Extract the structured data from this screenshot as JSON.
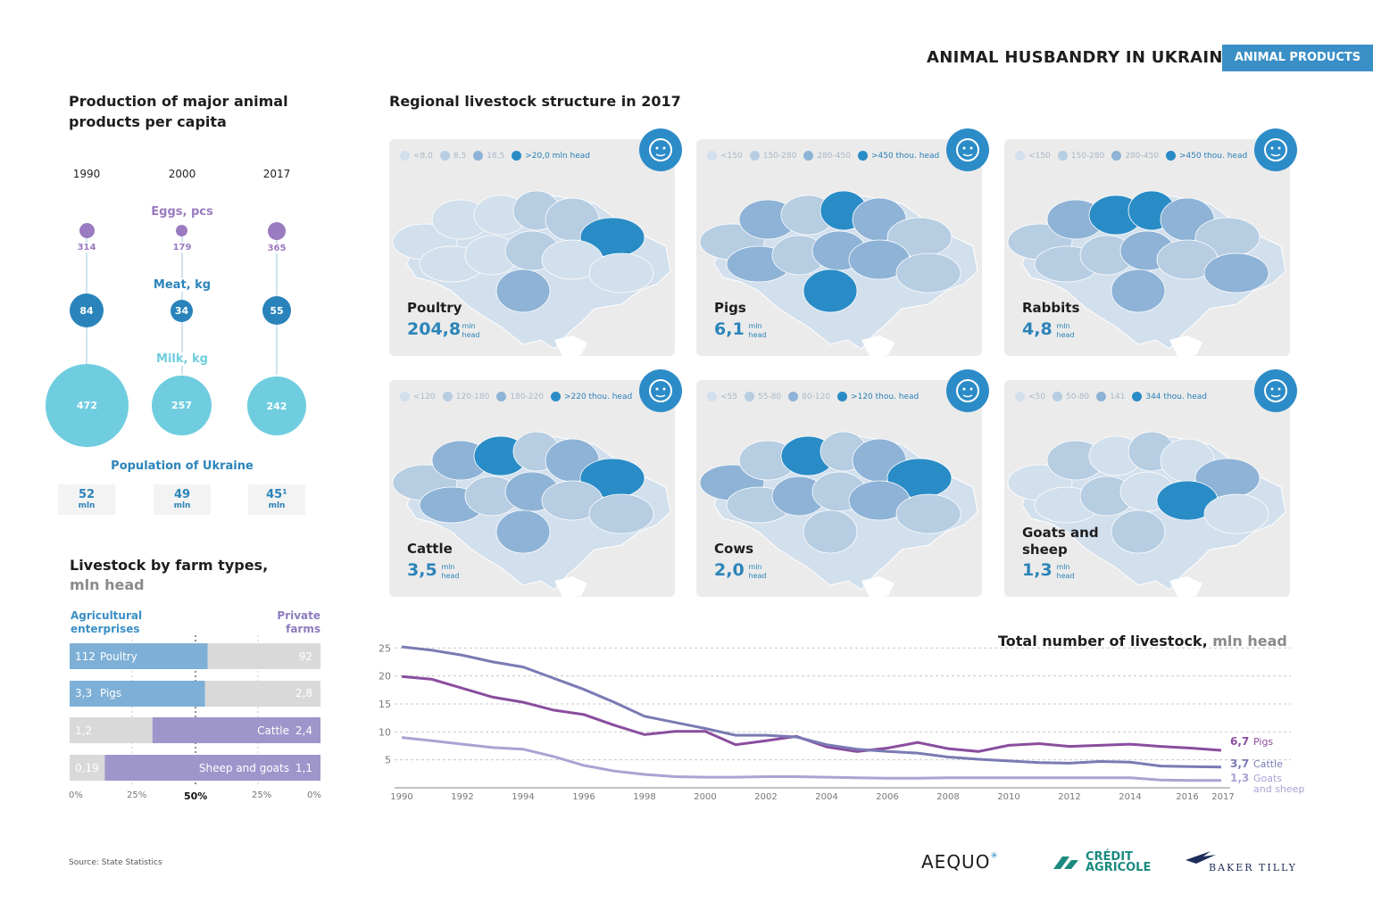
{
  "header": {
    "title": "ANIMAL HUSBANDRY IN UKRAINE",
    "tag": "ANIMAL PRODUCTS"
  },
  "per_capita": {
    "title": "Production of major animal products per capita",
    "years": [
      "1990",
      "2000",
      "2017"
    ],
    "eggs_label": "Eggs, pcs",
    "eggs": [
      "314",
      "179",
      "365"
    ],
    "meat_label": "Meat, kg",
    "meat": [
      "84",
      "34",
      "55"
    ],
    "milk_label": "Milk, kg",
    "milk": [
      "472",
      "257",
      "242"
    ],
    "population_label": "Population of Ukraine",
    "population": [
      "52",
      "49",
      "45¹"
    ],
    "population_unit": "mln",
    "colors": {
      "eggs": "#9a7ac0",
      "meat": "#2a84bb",
      "milk": "#6fcddf"
    }
  },
  "farm_types": {
    "title": "Livestock by farm types,",
    "subtitle": "mln head",
    "left_header": "Agricultural enterprises",
    "right_header": "Private farms",
    "rows": [
      {
        "name": "Poultry",
        "left": "112",
        "right": "92",
        "share": 0.55
      },
      {
        "name": "Pigs",
        "left": "3,3",
        "right": "2,8",
        "share": 0.54
      },
      {
        "name": "Cattle",
        "left": "1,2",
        "right": "2,4",
        "share": 0.33
      },
      {
        "name": "Sheep and goats",
        "left": "0,19",
        "right": "1,1",
        "share": 0.14
      }
    ],
    "axis": [
      "0%",
      "25%",
      "50%",
      "25%",
      "0%"
    ]
  },
  "maps_title": "Regional livestock structure in 2017",
  "maps": [
    {
      "name": "Poultry",
      "value": "204,8",
      "unit1": "mln",
      "unit2": "head",
      "icon": "chicken-icon",
      "legend": [
        "<8,0",
        "8,5",
        "18,5",
        ">20,0 mln head"
      ]
    },
    {
      "name": "Pigs",
      "value": "6,1",
      "unit1": "mln",
      "unit2": "head",
      "icon": "pig-icon",
      "legend": [
        "<150",
        "150-280",
        "280-450",
        ">450 thou. head"
      ]
    },
    {
      "name": "Rabbits",
      "value": "4,8",
      "unit1": "mln",
      "unit2": "head",
      "icon": "rabbit-icon",
      "legend": [
        "<150",
        "150-280",
        "280-450",
        ">450 thou. head"
      ]
    },
    {
      "name": "Cattle",
      "value": "3,5",
      "unit1": "mln",
      "unit2": "head",
      "icon": "bull-icon",
      "legend": [
        "<120",
        "120-180",
        "180-220",
        ">220 thou. head"
      ]
    },
    {
      "name": "Cows",
      "value": "2,0",
      "unit1": "mln",
      "unit2": "head",
      "icon": "cow-icon",
      "legend": [
        "<55",
        "55-80",
        "80-120",
        ">120 thou. head"
      ]
    },
    {
      "name": "Goats and sheep",
      "value": "1,3",
      "unit1": "mln",
      "unit2": "head",
      "icon": "ram-icon",
      "legend": [
        "<50",
        "50-80",
        "141",
        "344 thou. head"
      ]
    }
  ],
  "map_colors": [
    "#d2dfec",
    "#b6cde2",
    "#8eb3d6",
    "#2a8cc6"
  ],
  "chart_data": {
    "type": "line",
    "title": "Total number of livestock,",
    "title_unit": "mln head",
    "x": [
      1990,
      1991,
      1992,
      1993,
      1994,
      1995,
      1996,
      1997,
      1998,
      1999,
      2000,
      2001,
      2002,
      2003,
      2004,
      2005,
      2006,
      2007,
      2008,
      2009,
      2010,
      2011,
      2012,
      2013,
      2014,
      2015,
      2016,
      2017
    ],
    "x_ticks": [
      "1990",
      "1992",
      "1994",
      "1996",
      "1998",
      "2000",
      "2002",
      "2004",
      "2006",
      "2008",
      "2010",
      "2012",
      "2014",
      "2016",
      "2017"
    ],
    "y_ticks": [
      5,
      10,
      15,
      20,
      25
    ],
    "ylim": [
      0,
      26
    ],
    "grid": true,
    "series": [
      {
        "name": "Pigs",
        "end_label": "6,7",
        "color": "#8a4d9e",
        "values": [
          19.9,
          19.4,
          17.8,
          16.2,
          15.3,
          13.9,
          13.1,
          11.2,
          9.5,
          10.1,
          10.1,
          7.7,
          8.4,
          9.2,
          7.3,
          6.5,
          7.1,
          8.1,
          7.0,
          6.5,
          7.6,
          7.9,
          7.4,
          7.6,
          7.8,
          7.4,
          7.1,
          6.7
        ]
      },
      {
        "name": "Cattle",
        "end_label": "3,7",
        "color": "#7a7ab4",
        "values": [
          25.2,
          24.6,
          23.7,
          22.5,
          21.6,
          19.6,
          17.6,
          15.3,
          12.8,
          11.7,
          10.6,
          9.4,
          9.4,
          9.1,
          7.7,
          6.9,
          6.5,
          6.2,
          5.5,
          5.1,
          4.8,
          4.5,
          4.4,
          4.7,
          4.6,
          3.9,
          3.8,
          3.7
        ]
      },
      {
        "name": "Goats and sheep",
        "end_label": "1,3",
        "color": "#a8a4d3",
        "values": [
          9.0,
          8.4,
          7.8,
          7.2,
          6.9,
          5.6,
          4.0,
          3.0,
          2.4,
          2.0,
          1.9,
          1.9,
          2.0,
          2.0,
          1.9,
          1.8,
          1.7,
          1.7,
          1.8,
          1.8,
          1.8,
          1.8,
          1.8,
          1.8,
          1.8,
          1.4,
          1.3,
          1.3
        ]
      }
    ]
  },
  "source": "Source: State Statistics",
  "logos": {
    "aequo": "AEQUO",
    "ca1": "CRÉDIT",
    "ca2": "AGRICOLE",
    "bt": "BAKER TILLY"
  }
}
